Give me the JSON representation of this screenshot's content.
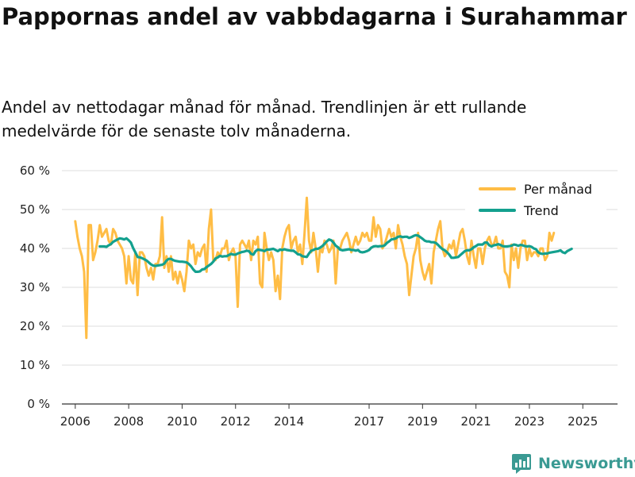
{
  "title": "Pappornas andel av vabbdagarna i Surahammar",
  "subtitle": "Andel av nettodagar månad för månad. Trendlinjen är ett rullande medelvärde för de senaste tolv månaderna.",
  "brand": {
    "name": "Newsworthy",
    "icon": "newsworthy-logo-icon"
  },
  "colors": {
    "per_month": "#ffbd45",
    "trend": "#13a08e",
    "grid": "#dddddd",
    "axis": "#333333"
  },
  "chart_data": {
    "type": "line",
    "title": "Pappornas andel av vabbdagarna i Surahammar",
    "xlabel": "",
    "ylabel": "",
    "x_range": [
      2005.5,
      2026.3
    ],
    "ylim": [
      0,
      60
    ],
    "y_ticks": [
      0,
      10,
      20,
      30,
      40,
      50,
      60
    ],
    "y_tick_labels": [
      "0 %",
      "10 %",
      "20 %",
      "30 %",
      "40 %",
      "50 %",
      "60 %"
    ],
    "x_ticks": [
      2006,
      2008,
      2010,
      2012,
      2014,
      2017,
      2019,
      2021,
      2023,
      2025
    ],
    "x_tick_labels": [
      "2006",
      "2008",
      "2010",
      "2012",
      "2014",
      "2017",
      "2019",
      "2021",
      "2023",
      "2025"
    ],
    "grid": true,
    "legend": {
      "position": "top-right",
      "entries": [
        "Per månad",
        "Trend"
      ]
    },
    "series": [
      {
        "name": "Per månad",
        "start": 2006.0,
        "step": 0.08333,
        "values": [
          47,
          43,
          40,
          38,
          34,
          17,
          46,
          46,
          37,
          39,
          42,
          46,
          43,
          44,
          45,
          42,
          41,
          45,
          44,
          42,
          41,
          40,
          38,
          31,
          38,
          32,
          31,
          39,
          28,
          39,
          39,
          38,
          35,
          33,
          35,
          32,
          36,
          36,
          38,
          48,
          35,
          38,
          34,
          38,
          32,
          34,
          31,
          34,
          32,
          29,
          34,
          42,
          40,
          41,
          36,
          39,
          38,
          40,
          41,
          34,
          45,
          50,
          37,
          37,
          39,
          38,
          40,
          40,
          42,
          37,
          39,
          40,
          38,
          25,
          41,
          42,
          41,
          40,
          42,
          37,
          42,
          41,
          43,
          31,
          30,
          44,
          40,
          37,
          39,
          37,
          29,
          33,
          27,
          40,
          43,
          45,
          46,
          40,
          42,
          43,
          39,
          41,
          36,
          44,
          53,
          42,
          39,
          44,
          40,
          34,
          40,
          39,
          42,
          41,
          39,
          40,
          42,
          31,
          40,
          40,
          42,
          43,
          44,
          42,
          39,
          41,
          43,
          41,
          42,
          44,
          43,
          44,
          42,
          42,
          48,
          43,
          46,
          45,
          40,
          41,
          43,
          45,
          43,
          44,
          40,
          46,
          43,
          41,
          38,
          36,
          28,
          33,
          38,
          40,
          44,
          37,
          34,
          32,
          34,
          36,
          31,
          39,
          42,
          45,
          47,
          40,
          38,
          39,
          41,
          40,
          42,
          38,
          41,
          44,
          45,
          42,
          38,
          36,
          42,
          38,
          35,
          40,
          40,
          36,
          40,
          42,
          43,
          41,
          41,
          43,
          40,
          40,
          42,
          34,
          33,
          30,
          41,
          37,
          40,
          35,
          40,
          42,
          42,
          37,
          40,
          38,
          39,
          39,
          38,
          40,
          40,
          37,
          38,
          44,
          42,
          44
        ]
      },
      {
        "name": "Trend",
        "start": 2006.9167,
        "step": 0.08333,
        "values": [
          40.5,
          40.5,
          40.5,
          40.4,
          40.8,
          41.1,
          41.7,
          42.0,
          42.3,
          42.6,
          42.5,
          42.3,
          42.6,
          42.1,
          41.5,
          40.1,
          39.0,
          37.8,
          37.7,
          37.5,
          37.2,
          36.9,
          36.4,
          35.9,
          35.6,
          35.5,
          35.6,
          35.7,
          35.8,
          36.1,
          36.9,
          37.3,
          37.3,
          37.0,
          36.8,
          36.7,
          36.6,
          36.6,
          36.5,
          36.4,
          36.0,
          35.4,
          34.6,
          34.0,
          34.0,
          34.1,
          34.6,
          34.7,
          35.2,
          35.6,
          36.0,
          36.6,
          37.4,
          37.7,
          38.1,
          37.9,
          38.0,
          38.0,
          38.3,
          38.6,
          38.4,
          38.4,
          38.7,
          38.9,
          39.1,
          39.2,
          39.4,
          39.3,
          38.6,
          38.4,
          39.3,
          39.7,
          39.6,
          39.5,
          39.3,
          39.7,
          39.7,
          39.8,
          39.9,
          39.6,
          39.3,
          39.7,
          39.6,
          39.8,
          39.6,
          39.5,
          39.4,
          39.4,
          39.0,
          38.5,
          38.4,
          38.0,
          37.9,
          37.8,
          38.7,
          39.4,
          39.6,
          39.9,
          39.9,
          40.2,
          40.6,
          41.2,
          41.8,
          42.3,
          42.1,
          41.5,
          40.7,
          40.3,
          39.7,
          39.5,
          39.6,
          39.7,
          39.8,
          39.6,
          39.6,
          39.4,
          39.6,
          39.1,
          39.0,
          39.1,
          39.3,
          39.6,
          40.2,
          40.5,
          40.6,
          40.5,
          40.6,
          40.6,
          40.8,
          41.4,
          41.8,
          42.3,
          42.4,
          42.6,
          43.0,
          43.1,
          42.9,
          43.0,
          43.0,
          42.7,
          42.9,
          43.2,
          43.4,
          43.3,
          42.9,
          42.5,
          42.0,
          41.8,
          41.8,
          41.6,
          41.6,
          41.4,
          40.9,
          40.3,
          39.8,
          39.5,
          39.0,
          38.4,
          37.6,
          37.6,
          37.7,
          37.8,
          38.3,
          38.8,
          39.3,
          39.5,
          39.5,
          39.8,
          40.3,
          40.6,
          41.0,
          41.0,
          41.0,
          41.5,
          41.5,
          40.8,
          40.5,
          40.8,
          40.9,
          41.1,
          40.9,
          40.6,
          40.5,
          40.5,
          40.6,
          40.7,
          41.0,
          40.9,
          40.7,
          40.9,
          40.8,
          40.6,
          40.5,
          40.6,
          40.4,
          40.0,
          39.8,
          39.0,
          38.7,
          38.6,
          38.7,
          38.7,
          38.9,
          39.0,
          39.1,
          39.2,
          39.3,
          39.5,
          39.0,
          38.8,
          39.3,
          39.6,
          39.9
        ]
      }
    ]
  }
}
